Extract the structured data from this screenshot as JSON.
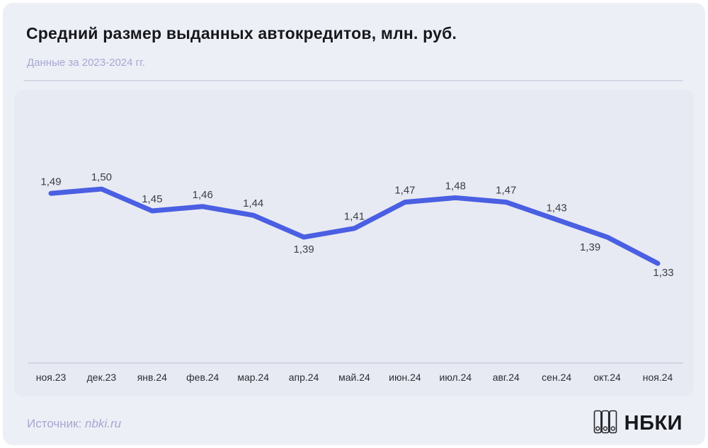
{
  "header": {
    "title": "Средний размер выданных автокредитов, млн. руб.",
    "subtitle": "Данные за 2023-2024 гг."
  },
  "chart_data": {
    "type": "line",
    "title": "Средний размер выданных автокредитов, млн. руб.",
    "subtitle": "Данные за 2023-2024 гг.",
    "categories": [
      "ноя.23",
      "дек.23",
      "янв.24",
      "фев.24",
      "мар.24",
      "апр.24",
      "май.24",
      "июн.24",
      "июл.24",
      "авг.24",
      "сен.24",
      "окт.24",
      "ноя.24"
    ],
    "values": [
      1.49,
      1.5,
      1.45,
      1.46,
      1.44,
      1.39,
      1.41,
      1.47,
      1.48,
      1.47,
      1.43,
      1.39,
      1.33
    ],
    "point_labels": [
      "1,49",
      "1,50",
      "1,45",
      "1,46",
      "1,44",
      "1,39",
      "1,41",
      "1,47",
      "1,48",
      "1,47",
      "1,43",
      "1,39",
      "1,33"
    ],
    "label_positions": [
      "above",
      "above",
      "above",
      "above",
      "above",
      "below",
      "above",
      "above",
      "above",
      "above",
      "above",
      "below-left",
      "below-right"
    ],
    "xlabel": "",
    "ylabel": "млн. руб.",
    "ylim": [
      1.28,
      1.56
    ],
    "grid": false,
    "legend_position": "none",
    "line_color": "#4a5fe2",
    "line_width": 7
  },
  "footer": {
    "source_prefix": "Источник: ",
    "source_link": "nbki.ru",
    "logo_text": "НБКИ",
    "logo_icon": "binders-icon"
  },
  "colors": {
    "page_bg": "#ffffff",
    "card_bg": "#edeff7",
    "panel_bg": "#e8eaf3",
    "divider": "#d5d7e5",
    "axis_line": "#c6c8d8",
    "title_text": "#17181c",
    "muted_text": "#a5a8cf",
    "data_label_text": "#3c3e46",
    "tick_text": "#2c2e34",
    "accent": "#4a5fe2"
  }
}
